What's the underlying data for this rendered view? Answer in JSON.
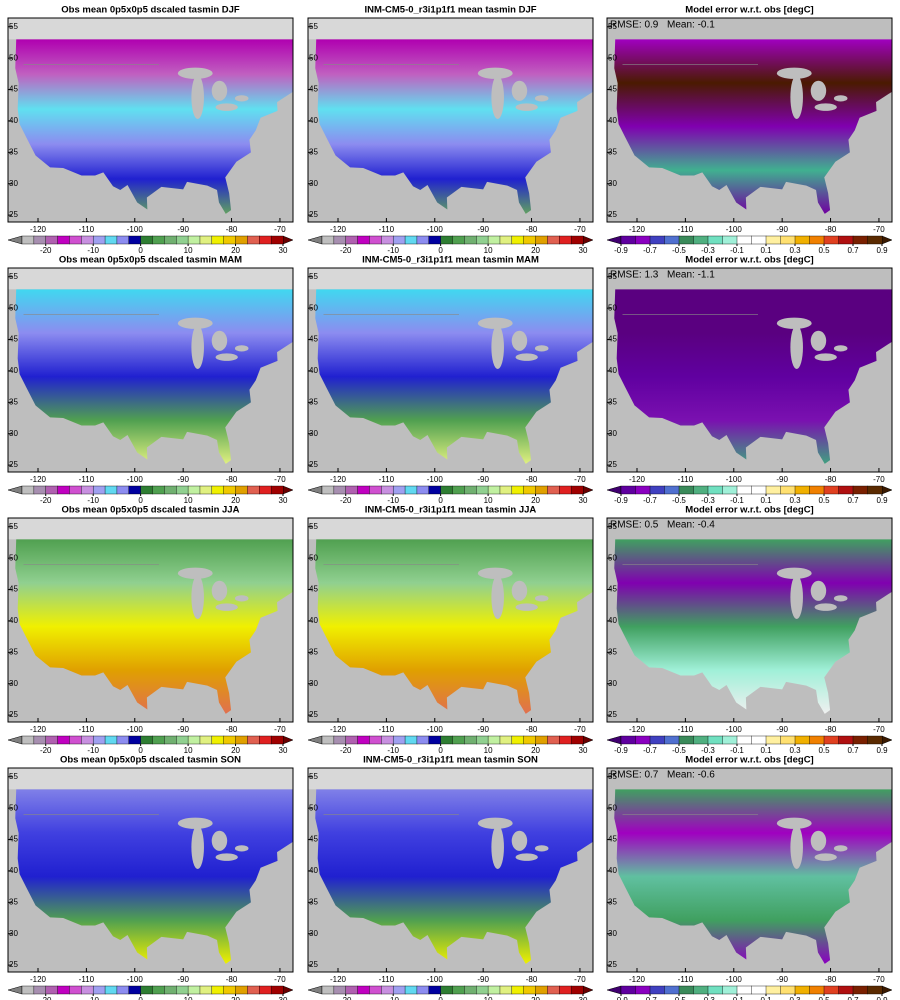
{
  "axes": {
    "xticks": [
      -120,
      -110,
      -100,
      -90,
      -80,
      -70
    ],
    "yticks": [
      25,
      30,
      35,
      40,
      45,
      50,
      55
    ],
    "xlim": [
      -126.2,
      -67.3
    ],
    "ylim": [
      23.9,
      56.4
    ]
  },
  "colorbars": {
    "temperature": {
      "clim": [
        -25,
        30
      ],
      "step": 2.5,
      "ticks": [
        -20,
        -10,
        0,
        10,
        20,
        30
      ],
      "colors": [
        "#bfbfbf",
        "#a78fb0",
        "#b060b0",
        "#c000c0",
        "#d050d0",
        "#c890e0",
        "#9fa0f0",
        "#60d8f0",
        "#8c8cf0",
        "#0000a0",
        "#2e7d32",
        "#50a050",
        "#70b070",
        "#90d090",
        "#c0f0a0",
        "#e0f080",
        "#f0f000",
        "#f0c800",
        "#e0a000",
        "#e06050",
        "#e02020",
        "#a00000"
      ],
      "under": "#808080",
      "over": "#6a0000"
    },
    "error": {
      "clim": [
        -0.9,
        0.9
      ],
      "step": 0.1,
      "ticks": [
        -0.9,
        -0.7,
        -0.5,
        -0.3,
        -0.1,
        0.1,
        0.3,
        0.5,
        0.7,
        0.9
      ],
      "colors": [
        "#6000a0",
        "#8a00c0",
        "#4040c0",
        "#5070d0",
        "#3a8a5a",
        "#50b080",
        "#70e0c0",
        "#a0f0d8",
        "#ffffff",
        "#ffffff",
        "#fff0a0",
        "#ffe070",
        "#f0b000",
        "#f08000",
        "#e04020",
        "#b01010",
        "#7a2000",
        "#5a2a00"
      ],
      "under": "#400070",
      "over": "#3a1a00"
    }
  },
  "rows": [
    {
      "panels": [
        {
          "title": "Obs mean 0p5x0p5 dscaled tasmin DJF",
          "colorbar": "temperature"
        },
        {
          "title": "INM-CM5-0_r3i1p1f1 mean tasmin DJF",
          "colorbar": "temperature"
        },
        {
          "title": "Model error w.r.t. obs [degC]",
          "colorbar": "error",
          "rmse": "RMSE: 0.9",
          "mean": "Mean: -0.1"
        }
      ]
    },
    {
      "panels": [
        {
          "title": "Obs mean 0p5x0p5 dscaled tasmin MAM",
          "colorbar": "temperature"
        },
        {
          "title": "INM-CM5-0_r3i1p1f1 mean tasmin MAM",
          "colorbar": "temperature"
        },
        {
          "title": "Model error w.r.t. obs [degC]",
          "colorbar": "error",
          "rmse": "RMSE: 1.3",
          "mean": "Mean: -1.1"
        }
      ]
    },
    {
      "panels": [
        {
          "title": "Obs mean 0p5x0p5 dscaled tasmin JJA",
          "colorbar": "temperature"
        },
        {
          "title": "INM-CM5-0_r3i1p1f1 mean tasmin JJA",
          "colorbar": "temperature"
        },
        {
          "title": "Model error w.r.t. obs [degC]",
          "colorbar": "error",
          "rmse": "RMSE: 0.5",
          "mean": "Mean: -0.4"
        }
      ]
    },
    {
      "panels": [
        {
          "title": "Obs mean 0p5x0p5 dscaled tasmin SON",
          "colorbar": "temperature"
        },
        {
          "title": "INM-CM5-0_r3i1p1f1 mean tasmin SON",
          "colorbar": "temperature"
        },
        {
          "title": "Model error w.r.t. obs [degC]",
          "colorbar": "error",
          "rmse": "RMSE: 0.7",
          "mean": "Mean: -0.6"
        }
      ]
    }
  ]
}
